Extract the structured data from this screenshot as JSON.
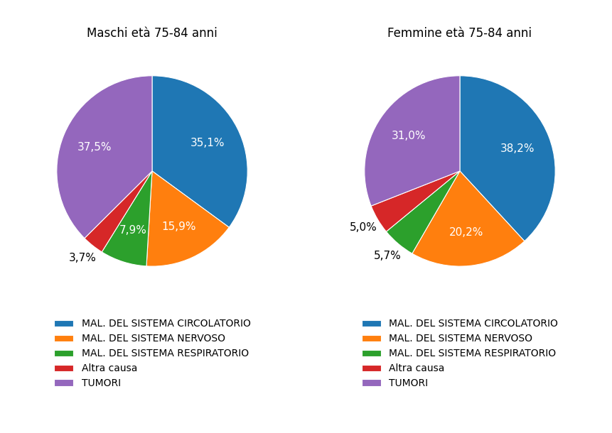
{
  "chart_data": [
    {
      "type": "pie",
      "title": "Maschi età 75-84 anni",
      "categories": [
        "MAL. DEL SISTEMA CIRCOLATORIO",
        "MAL. DEL SISTEMA NERVOSO",
        "MAL. DEL SISTEMA RESPIRATORIO",
        "Altra causa",
        "TUMORI"
      ],
      "values": [
        35.1,
        15.9,
        7.9,
        3.7,
        37.5
      ],
      "value_labels": [
        "35,1%",
        "15,9%",
        "7,9%",
        "3,7%",
        "37,5%"
      ],
      "data_labels": true,
      "legend": "lower center"
    },
    {
      "type": "pie",
      "title": "Femmine età 75-84 anni",
      "categories": [
        "MAL. DEL SISTEMA CIRCOLATORIO",
        "MAL. DEL SISTEMA NERVOSO",
        "MAL. DEL SISTEMA RESPIRATORIO",
        "Altra causa",
        "TUMORI"
      ],
      "values": [
        38.2,
        20.2,
        5.7,
        5.0,
        31.0
      ],
      "value_labels": [
        "38,2%",
        "20,2%",
        "5,7%",
        "5,0%",
        "31,0%"
      ],
      "data_labels": true,
      "legend": "lower center"
    }
  ]
}
